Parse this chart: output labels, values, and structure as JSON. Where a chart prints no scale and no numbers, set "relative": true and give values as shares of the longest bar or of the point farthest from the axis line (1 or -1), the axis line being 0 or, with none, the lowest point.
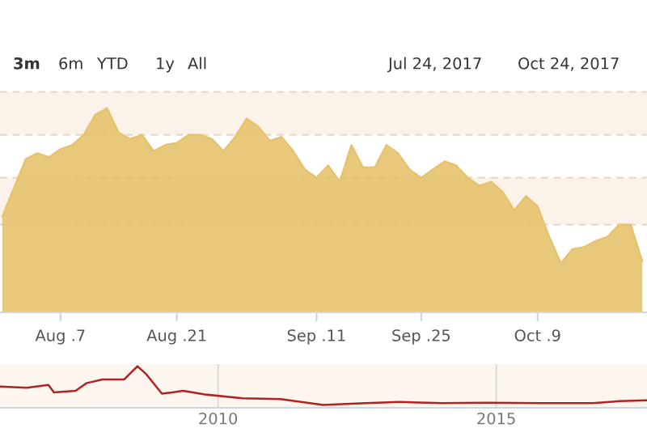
{
  "chart_data": [
    {
      "type": "area",
      "relative": true,
      "color": "#e6c26c",
      "grid": false,
      "legend": false,
      "categories": [
        null,
        null,
        null,
        null,
        null,
        "Aug .7",
        null,
        null,
        null,
        null,
        null,
        null,
        null,
        null,
        null,
        "Aug .21",
        null,
        null,
        null,
        null,
        null,
        null,
        null,
        null,
        null,
        null,
        null,
        "Sep .11",
        null,
        null,
        null,
        null,
        null,
        null,
        null,
        null,
        "Sep .25",
        null,
        null,
        null,
        null,
        null,
        null,
        null,
        null,
        null,
        "Oct .9",
        null,
        null,
        null,
        null,
        null,
        null,
        null,
        null,
        null
      ],
      "values": [
        0.47,
        0.61,
        0.75,
        0.78,
        0.76,
        0.8,
        0.82,
        0.87,
        0.97,
        1.0,
        0.88,
        0.85,
        0.87,
        0.79,
        0.82,
        0.83,
        0.87,
        0.87,
        0.85,
        0.79,
        0.86,
        0.95,
        0.91,
        0.84,
        0.86,
        0.79,
        0.7,
        0.66,
        0.72,
        0.64,
        0.82,
        0.71,
        0.71,
        0.82,
        0.78,
        0.7,
        0.66,
        0.7,
        0.74,
        0.72,
        0.66,
        0.62,
        0.64,
        0.59,
        0.5,
        0.57,
        0.52,
        0.37,
        0.24,
        0.31,
        0.32,
        0.35,
        0.37,
        0.43,
        0.43,
        0.25
      ],
      "bands": [
        {
          "axis": "y",
          "from": 0.87,
          "to": 1.08,
          "color": "#fbf3ea"
        },
        {
          "axis": "y",
          "from": 0.43,
          "to": 0.66,
          "color": "#fbf3ea"
        }
      ],
      "annotations": [
        "3m",
        "6m",
        "YTD",
        "1y",
        "All",
        "Jul 24, 2017",
        "Oct 24, 2017"
      ]
    },
    {
      "type": "line",
      "relative": true,
      "color": "#b22222",
      "grid": "x",
      "legend": false,
      "x": [
        2006.08,
        2006.56,
        2006.95,
        2007.05,
        2007.44,
        2007.63,
        2007.92,
        2008.31,
        2008.55,
        2008.7,
        2008.99,
        2009.18,
        2009.37,
        2009.76,
        2010.44,
        2011.12,
        2011.89,
        2012.47,
        2013.25,
        2014.03,
        2014.8,
        2015.77,
        2016.74,
        2017.22,
        2017.71
      ],
      "values": [
        0.51,
        0.48,
        0.55,
        0.37,
        0.41,
        0.59,
        0.68,
        0.68,
        1.0,
        0.82,
        0.34,
        0.37,
        0.41,
        0.32,
        0.23,
        0.21,
        0.07,
        0.1,
        0.14,
        0.11,
        0.12,
        0.11,
        0.11,
        0.16,
        0.18
      ],
      "xlim": [
        2006.08,
        2017.71
      ],
      "xticks": [
        2010,
        2015
      ]
    }
  ]
}
